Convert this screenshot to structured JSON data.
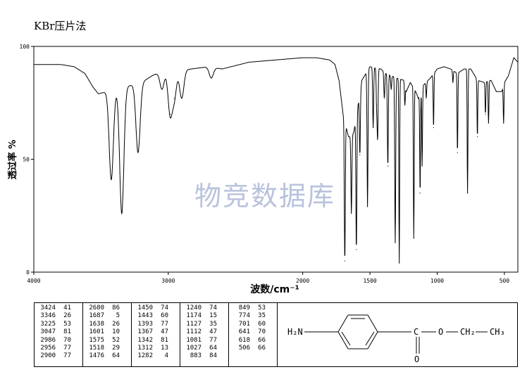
{
  "title": "KBr压片法",
  "watermark": "物竞数据库",
  "colors": {
    "line": "#000000",
    "watermark": "#b9c2dd",
    "background": "#ffffff"
  },
  "chart_data": {
    "type": "line",
    "title": "KBr压片法",
    "xlabel": "波数/cm⁻¹",
    "ylabel": "透过率 %",
    "xlim": [
      4000,
      400
    ],
    "ylim": [
      0,
      100
    ],
    "x_reversed": true,
    "grid": false,
    "xticks": [
      4000,
      3000,
      2000,
      1500,
      1000,
      500
    ],
    "yticks": [
      0,
      50,
      100
    ],
    "baseline": [
      [
        4000,
        92
      ],
      [
        3800,
        92
      ],
      [
        3700,
        91
      ],
      [
        3620,
        88
      ],
      [
        3560,
        82
      ],
      [
        3520,
        79
      ],
      [
        3200,
        84
      ],
      [
        3120,
        87
      ],
      [
        3050,
        89
      ],
      [
        2960,
        89
      ],
      [
        2700,
        91
      ],
      [
        2600,
        90
      ],
      [
        2400,
        93
      ],
      [
        2200,
        94
      ],
      [
        2000,
        95
      ],
      [
        1900,
        95
      ],
      [
        1800,
        94
      ],
      [
        1760,
        92
      ],
      [
        1730,
        85
      ],
      [
        1700,
        70
      ],
      [
        1660,
        60
      ],
      [
        1640,
        60
      ],
      [
        1620,
        62
      ],
      [
        1560,
        85
      ],
      [
        1500,
        91
      ],
      [
        1420,
        90
      ],
      [
        1380,
        88
      ],
      [
        1300,
        86
      ],
      [
        1250,
        85
      ],
      [
        1230,
        80
      ],
      [
        1200,
        84
      ],
      [
        1160,
        80
      ],
      [
        1140,
        77
      ],
      [
        1100,
        83
      ],
      [
        1050,
        86
      ],
      [
        1000,
        90
      ],
      [
        950,
        91
      ],
      [
        900,
        90
      ],
      [
        850,
        88
      ],
      [
        800,
        90
      ],
      [
        750,
        90
      ],
      [
        700,
        85
      ],
      [
        650,
        84
      ],
      [
        600,
        85
      ],
      [
        560,
        80
      ],
      [
        520,
        80
      ],
      [
        500,
        84
      ],
      [
        470,
        87
      ],
      [
        430,
        95
      ],
      [
        400,
        93
      ]
    ],
    "peaks": [
      {
        "wn": 3424,
        "t": 41
      },
      {
        "wn": 3346,
        "t": 26
      },
      {
        "wn": 3225,
        "t": 53
      },
      {
        "wn": 3047,
        "t": 81
      },
      {
        "wn": 2986,
        "t": 70
      },
      {
        "wn": 2956,
        "t": 77
      },
      {
        "wn": 2900,
        "t": 77
      },
      {
        "wn": 2680,
        "t": 86
      },
      {
        "wn": 1687,
        "t": 5
      },
      {
        "wn": 1638,
        "t": 26
      },
      {
        "wn": 1601,
        "t": 10
      },
      {
        "wn": 1575,
        "t": 52
      },
      {
        "wn": 1518,
        "t": 29
      },
      {
        "wn": 1476,
        "t": 64
      },
      {
        "wn": 1450,
        "t": 74
      },
      {
        "wn": 1443,
        "t": 60
      },
      {
        "wn": 1393,
        "t": 77
      },
      {
        "wn": 1367,
        "t": 47
      },
      {
        "wn": 1342,
        "t": 81
      },
      {
        "wn": 1312,
        "t": 13
      },
      {
        "wn": 1282,
        "t": 4
      },
      {
        "wn": 1240,
        "t": 74
      },
      {
        "wn": 1174,
        "t": 15
      },
      {
        "wn": 1127,
        "t": 35
      },
      {
        "wn": 1112,
        "t": 47
      },
      {
        "wn": 1081,
        "t": 77
      },
      {
        "wn": 1027,
        "t": 64
      },
      {
        "wn": 883,
        "t": 84
      },
      {
        "wn": 849,
        "t": 53
      },
      {
        "wn": 774,
        "t": 35
      },
      {
        "wn": 701,
        "t": 60
      },
      {
        "wn": 641,
        "t": 70
      },
      {
        "wn": 618,
        "t": 66
      },
      {
        "wn": 506,
        "t": 66
      }
    ]
  },
  "peak_columns": [
    [
      [
        "3424",
        "41"
      ],
      [
        "3346",
        "26"
      ],
      [
        "3225",
        "53"
      ],
      [
        "3047",
        "81"
      ],
      [
        "2986",
        "70"
      ],
      [
        "2956",
        "77"
      ],
      [
        "2900",
        "77"
      ]
    ],
    [
      [
        "2680",
        "86"
      ],
      [
        "1687",
        "5"
      ],
      [
        "1638",
        "26"
      ],
      [
        "1601",
        "10"
      ],
      [
        "1575",
        "52"
      ],
      [
        "1518",
        "29"
      ],
      [
        "1476",
        "64"
      ]
    ],
    [
      [
        "1450",
        "74"
      ],
      [
        "1443",
        "60"
      ],
      [
        "1393",
        "77"
      ],
      [
        "1367",
        "47"
      ],
      [
        "1342",
        "81"
      ],
      [
        "1312",
        "13"
      ],
      [
        "1282",
        "4"
      ]
    ],
    [
      [
        "1240",
        "74"
      ],
      [
        "1174",
        "15"
      ],
      [
        "1127",
        "35"
      ],
      [
        "1112",
        "47"
      ],
      [
        "1081",
        "77"
      ],
      [
        "1027",
        "64"
      ],
      [
        "883",
        "84"
      ]
    ],
    [
      [
        "849",
        "53"
      ],
      [
        "774",
        "35"
      ],
      [
        "701",
        "60"
      ],
      [
        "641",
        "70"
      ],
      [
        "618",
        "66"
      ],
      [
        "506",
        "66"
      ]
    ]
  ],
  "structure": {
    "amine": "H₂N",
    "carbon": "C",
    "ether_o": "O",
    "ch2": "CH₂",
    "ch3": "CH₃",
    "carbonyl_o": "O"
  }
}
